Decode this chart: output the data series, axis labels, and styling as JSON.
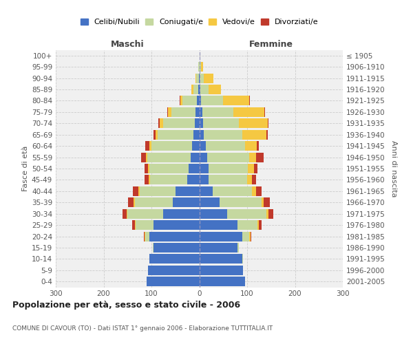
{
  "age_groups": [
    "0-4",
    "5-9",
    "10-14",
    "15-19",
    "20-24",
    "25-29",
    "30-34",
    "35-39",
    "40-44",
    "45-49",
    "50-54",
    "55-59",
    "60-64",
    "65-69",
    "70-74",
    "75-79",
    "80-84",
    "85-89",
    "90-94",
    "95-99",
    "100+"
  ],
  "birth_years": [
    "2001-2005",
    "1996-2000",
    "1991-1995",
    "1986-1990",
    "1981-1985",
    "1976-1980",
    "1971-1975",
    "1966-1970",
    "1961-1965",
    "1956-1960",
    "1951-1955",
    "1946-1950",
    "1941-1945",
    "1936-1940",
    "1931-1935",
    "1926-1930",
    "1921-1925",
    "1916-1920",
    "1911-1915",
    "1906-1910",
    "≤ 1905"
  ],
  "maschi_celibi": [
    110,
    107,
    105,
    95,
    105,
    95,
    75,
    55,
    50,
    25,
    22,
    18,
    15,
    12,
    10,
    8,
    5,
    2,
    1,
    0,
    0
  ],
  "maschi_coniugati": [
    0,
    0,
    0,
    2,
    8,
    38,
    75,
    80,
    75,
    78,
    82,
    90,
    85,
    75,
    65,
    50,
    30,
    10,
    5,
    2,
    0
  ],
  "maschi_vedovi": [
    0,
    0,
    0,
    0,
    1,
    2,
    2,
    2,
    2,
    3,
    3,
    3,
    5,
    5,
    8,
    8,
    5,
    5,
    2,
    0,
    0
  ],
  "maschi_divorziati": [
    0,
    0,
    0,
    0,
    2,
    5,
    8,
    12,
    12,
    8,
    8,
    10,
    8,
    3,
    2,
    1,
    1,
    0,
    0,
    0,
    0
  ],
  "femmine_celibi": [
    95,
    92,
    90,
    80,
    90,
    80,
    58,
    42,
    28,
    20,
    20,
    16,
    13,
    10,
    8,
    6,
    4,
    2,
    1,
    0,
    0
  ],
  "femmine_coniugati": [
    0,
    0,
    1,
    3,
    15,
    42,
    82,
    88,
    82,
    80,
    82,
    88,
    82,
    80,
    75,
    65,
    45,
    18,
    8,
    3,
    0
  ],
  "femmine_vedovi": [
    0,
    0,
    0,
    0,
    2,
    3,
    5,
    5,
    8,
    10,
    12,
    15,
    25,
    50,
    60,
    65,
    55,
    25,
    20,
    5,
    0
  ],
  "femmine_divorziati": [
    0,
    0,
    0,
    0,
    2,
    5,
    10,
    12,
    12,
    8,
    8,
    15,
    5,
    3,
    2,
    2,
    2,
    0,
    0,
    0,
    0
  ],
  "color_celibi": "#4472c4",
  "color_coniugati": "#c5d8a0",
  "color_vedovi": "#f5c842",
  "color_divorziati": "#c0392b",
  "title": "Popolazione per età, sesso e stato civile - 2006",
  "subtitle": "COMUNE DI CAVOUR (TO) - Dati ISTAT 1° gennaio 2006 - Elaborazione TUTTITALIA.IT",
  "ylabel_left": "Fasce di età",
  "ylabel_right": "Anni di nascita",
  "xlabel_left": "Maschi",
  "xlabel_right": "Femmine",
  "xlim": 300,
  "bg_color": "#f0f0f0",
  "legend_labels": [
    "Celibi/Nubili",
    "Coniugati/e",
    "Vedovi/e",
    "Divorziati/e"
  ]
}
